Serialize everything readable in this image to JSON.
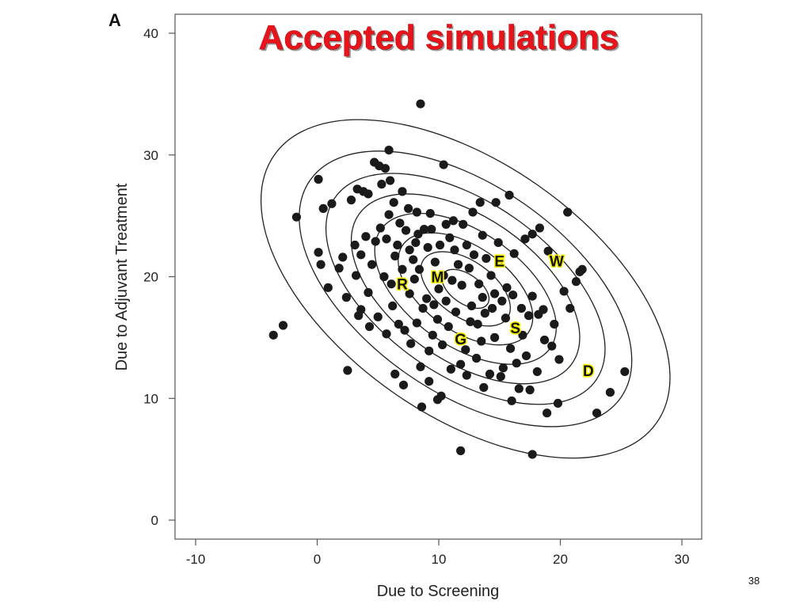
{
  "slide": {
    "panel_letter": "A",
    "page_number": "38"
  },
  "chart_data": {
    "type": "scatter",
    "title": "Accepted simulations",
    "xlabel": "Due to Screening",
    "ylabel": "Due to Adjuvant Treatment",
    "xlim": [
      -10,
      30
    ],
    "ylim": [
      0,
      40
    ],
    "xticks": [
      -10,
      0,
      10,
      20,
      30
    ],
    "yticks": [
      0,
      10,
      20,
      30,
      40
    ],
    "grid": false,
    "colors": {
      "points": "#1a1a1a",
      "contours": "#222222",
      "title": "#e8141b",
      "label_outline": "#f5ef00"
    },
    "contours": {
      "type": "ellipse",
      "center": [
        12.2,
        19.0
      ],
      "semi_axes": [
        [
          2.2,
          1.2
        ],
        [
          4.2,
          2.3
        ],
        [
          6.3,
          3.5
        ],
        [
          8.5,
          4.7
        ],
        [
          10.7,
          5.9
        ],
        [
          13.1,
          7.1
        ],
        [
          15.6,
          8.5
        ],
        [
          19.2,
          10.4
        ]
      ],
      "angle_deg": -35
    },
    "annotations": [
      {
        "label": "E",
        "x": 15.0,
        "y": 21.3
      },
      {
        "label": "W",
        "x": 19.7,
        "y": 21.3
      },
      {
        "label": "R",
        "x": 7.0,
        "y": 19.4
      },
      {
        "label": "M",
        "x": 9.9,
        "y": 20.0
      },
      {
        "label": "S",
        "x": 16.3,
        "y": 15.8
      },
      {
        "label": "G",
        "x": 11.8,
        "y": 14.9
      },
      {
        "label": "D",
        "x": 22.3,
        "y": 12.3
      }
    ],
    "points": [
      [
        8.5,
        34.2
      ],
      [
        -1.7,
        24.9
      ],
      [
        0.1,
        28.0
      ],
      [
        5.9,
        30.4
      ],
      [
        10.4,
        29.2
      ],
      [
        20.6,
        25.3
      ],
      [
        -3.6,
        15.2
      ],
      [
        -2.8,
        16.0
      ],
      [
        2.5,
        12.3
      ],
      [
        25.3,
        12.2
      ],
      [
        24.1,
        10.5
      ],
      [
        23.0,
        8.8
      ],
      [
        11.8,
        5.7
      ],
      [
        17.7,
        5.4
      ],
      [
        21.6,
        20.4
      ],
      [
        21.8,
        20.6
      ],
      [
        21.3,
        19.6
      ],
      [
        0.5,
        25.6
      ],
      [
        1.2,
        26.0
      ],
      [
        2.8,
        26.3
      ],
      [
        3.3,
        27.2
      ],
      [
        3.8,
        27.0
      ],
      [
        4.2,
        26.8
      ],
      [
        5.1,
        29.1
      ],
      [
        5.6,
        28.9
      ],
      [
        4.7,
        29.4
      ],
      [
        5.3,
        27.6
      ],
      [
        6.0,
        27.9
      ],
      [
        7.0,
        27.0
      ],
      [
        7.5,
        25.6
      ],
      [
        8.2,
        25.3
      ],
      [
        9.3,
        25.2
      ],
      [
        10.6,
        24.3
      ],
      [
        11.2,
        24.6
      ],
      [
        12.0,
        24.3
      ],
      [
        12.8,
        25.3
      ],
      [
        13.4,
        26.1
      ],
      [
        14.7,
        26.1
      ],
      [
        15.8,
        26.7
      ],
      [
        17.1,
        23.1
      ],
      [
        17.7,
        23.5
      ],
      [
        18.3,
        24.0
      ],
      [
        19.0,
        22.1
      ],
      [
        0.3,
        21.0
      ],
      [
        0.1,
        22.0
      ],
      [
        0.9,
        19.1
      ],
      [
        1.8,
        20.7
      ],
      [
        2.1,
        21.6
      ],
      [
        2.4,
        18.3
      ],
      [
        3.2,
        20.1
      ],
      [
        3.1,
        22.6
      ],
      [
        3.6,
        17.3
      ],
      [
        3.4,
        16.8
      ],
      [
        4.2,
        18.7
      ],
      [
        4.5,
        21.0
      ],
      [
        4.8,
        22.9
      ],
      [
        5.2,
        24.0
      ],
      [
        5.7,
        23.1
      ],
      [
        5.5,
        20.0
      ],
      [
        6.1,
        19.4
      ],
      [
        6.4,
        21.7
      ],
      [
        6.6,
        22.6
      ],
      [
        6.8,
        24.4
      ],
      [
        7.3,
        23.8
      ],
      [
        7.6,
        22.2
      ],
      [
        7.9,
        21.4
      ],
      [
        8.3,
        23.5
      ],
      [
        8.8,
        23.9
      ],
      [
        9.1,
        22.4
      ],
      [
        9.4,
        23.9
      ],
      [
        9.7,
        21.2
      ],
      [
        10.1,
        22.6
      ],
      [
        10.4,
        20.1
      ],
      [
        10.6,
        18.0
      ],
      [
        11.1,
        19.7
      ],
      [
        11.3,
        22.2
      ],
      [
        11.6,
        21.0
      ],
      [
        11.9,
        19.3
      ],
      [
        12.3,
        22.6
      ],
      [
        12.5,
        20.7
      ],
      [
        12.9,
        21.8
      ],
      [
        13.3,
        19.4
      ],
      [
        13.6,
        18.3
      ],
      [
        13.9,
        21.5
      ],
      [
        14.3,
        20.1
      ],
      [
        14.6,
        18.6
      ],
      [
        15.2,
        18.0
      ],
      [
        15.6,
        19.1
      ],
      [
        16.1,
        18.5
      ],
      [
        16.8,
        17.4
      ],
      [
        17.4,
        16.8
      ],
      [
        18.2,
        16.9
      ],
      [
        18.6,
        17.3
      ],
      [
        17.7,
        18.4
      ],
      [
        4.3,
        15.9
      ],
      [
        5.0,
        16.7
      ],
      [
        5.7,
        15.3
      ],
      [
        6.2,
        17.6
      ],
      [
        6.7,
        16.1
      ],
      [
        7.2,
        15.6
      ],
      [
        7.7,
        14.5
      ],
      [
        8.2,
        16.2
      ],
      [
        8.7,
        17.4
      ],
      [
        9.2,
        13.9
      ],
      [
        9.5,
        15.2
      ],
      [
        9.9,
        16.5
      ],
      [
        10.3,
        14.4
      ],
      [
        10.8,
        15.9
      ],
      [
        11.4,
        17.1
      ],
      [
        11.8,
        12.8
      ],
      [
        12.2,
        14.0
      ],
      [
        12.6,
        16.3
      ],
      [
        13.1,
        13.3
      ],
      [
        13.5,
        14.7
      ],
      [
        13.8,
        17.0
      ],
      [
        14.2,
        12.0
      ],
      [
        14.6,
        15.0
      ],
      [
        15.3,
        12.5
      ],
      [
        15.9,
        14.1
      ],
      [
        16.4,
        12.9
      ],
      [
        16.9,
        15.2
      ],
      [
        17.2,
        13.5
      ],
      [
        18.1,
        12.2
      ],
      [
        18.7,
        14.8
      ],
      [
        19.3,
        14.3
      ],
      [
        19.9,
        13.2
      ],
      [
        19.5,
        16.1
      ],
      [
        20.3,
        18.8
      ],
      [
        20.8,
        17.4
      ],
      [
        6.4,
        12.0
      ],
      [
        7.1,
        11.1
      ],
      [
        8.5,
        12.6
      ],
      [
        9.2,
        11.4
      ],
      [
        9.9,
        9.9
      ],
      [
        10.2,
        10.2
      ],
      [
        11.0,
        12.4
      ],
      [
        12.3,
        11.9
      ],
      [
        13.7,
        10.9
      ],
      [
        15.1,
        11.8
      ],
      [
        16.0,
        9.8
      ],
      [
        16.6,
        10.8
      ],
      [
        17.5,
        10.7
      ],
      [
        18.9,
        8.8
      ],
      [
        19.8,
        9.6
      ],
      [
        8.6,
        9.3
      ],
      [
        3.6,
        21.8
      ],
      [
        4.0,
        23.3
      ],
      [
        5.9,
        25.1
      ],
      [
        6.3,
        26.1
      ],
      [
        7.6,
        18.6
      ],
      [
        8.0,
        19.8
      ],
      [
        8.4,
        20.6
      ],
      [
        9.0,
        18.2
      ],
      [
        9.6,
        17.7
      ],
      [
        10.0,
        19.0
      ],
      [
        12.7,
        17.6
      ],
      [
        13.2,
        16.1
      ],
      [
        14.4,
        17.4
      ],
      [
        15.5,
        16.6
      ],
      [
        16.2,
        21.9
      ],
      [
        14.9,
        22.8
      ],
      [
        13.6,
        23.4
      ],
      [
        10.9,
        23.2
      ],
      [
        8.1,
        22.8
      ],
      [
        7.0,
        20.6
      ]
    ]
  }
}
